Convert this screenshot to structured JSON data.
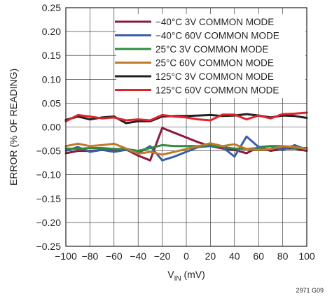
{
  "chart_data": {
    "type": "line",
    "xlabel_main": "V",
    "xlabel_sub": "IN",
    "xlabel_unit": " (mV)",
    "ylabel": "ERROR (% OF READING)",
    "figure_id": "2971 G09",
    "xlim": [
      -100,
      100
    ],
    "ylim": [
      -0.25,
      0.25
    ],
    "x_ticks": [
      -100,
      -80,
      -60,
      -40,
      -20,
      0,
      20,
      40,
      60,
      80,
      100
    ],
    "x_tick_labels": [
      "−100",
      "−80",
      "−60",
      "−40",
      "−20",
      "0",
      "20",
      "40",
      "60",
      "80",
      "100"
    ],
    "y_ticks": [
      -0.25,
      -0.2,
      -0.15,
      -0.1,
      -0.05,
      0,
      0.05,
      0.1,
      0.15,
      0.2,
      0.25
    ],
    "y_tick_labels": [
      "−0.25",
      "−0.20",
      "−0.15",
      "−0.10",
      "−0.05",
      "0.00",
      "0.05",
      "0.10",
      "0.15",
      "0.20",
      "0.25"
    ],
    "grid": true,
    "legend_position": "top-right",
    "x": [
      -100,
      -90,
      -80,
      -70,
      -60,
      -50,
      -40,
      -30,
      -20,
      -10,
      0,
      10,
      20,
      30,
      40,
      50,
      60,
      70,
      80,
      90,
      100
    ],
    "series": [
      {
        "name": "−40°C 3V COMMON MODE",
        "color": "#8b1a3a",
        "values": [
          -0.055,
          -0.05,
          -0.05,
          -0.048,
          -0.05,
          -0.047,
          -0.06,
          -0.07,
          -0.002,
          -0.012,
          -0.022,
          -0.032,
          -0.04,
          -0.045,
          -0.048,
          -0.055,
          -0.042,
          -0.05,
          -0.045,
          -0.045,
          -0.05
        ]
      },
      {
        "name": "−40°C 60V COMMON MODE",
        "color": "#3a5eab",
        "values": [
          -0.05,
          -0.042,
          -0.052,
          -0.048,
          -0.052,
          -0.048,
          -0.055,
          -0.04,
          -0.07,
          -0.062,
          -0.052,
          -0.042,
          -0.04,
          -0.042,
          -0.062,
          -0.02,
          -0.042,
          -0.04,
          -0.048,
          -0.038,
          -0.048
        ]
      },
      {
        "name": "25°C 3V COMMON MODE",
        "color": "#2e8b3e",
        "values": [
          -0.045,
          -0.046,
          -0.044,
          -0.044,
          -0.046,
          -0.046,
          -0.05,
          -0.044,
          -0.038,
          -0.04,
          -0.04,
          -0.04,
          -0.038,
          -0.042,
          -0.045,
          -0.046,
          -0.044,
          -0.04,
          -0.04,
          -0.044,
          -0.044
        ]
      },
      {
        "name": "25°C 60V COMMON MODE",
        "color": "#c07a2a",
        "values": [
          -0.04,
          -0.035,
          -0.04,
          -0.038,
          -0.035,
          -0.045,
          -0.056,
          -0.052,
          -0.058,
          -0.052,
          -0.046,
          -0.04,
          -0.034,
          -0.04,
          -0.036,
          -0.046,
          -0.048,
          -0.046,
          -0.04,
          -0.042,
          -0.046
        ]
      },
      {
        "name": "125°C 3V COMMON MODE",
        "color": "#231f20",
        "values": [
          0.015,
          0.022,
          0.016,
          0.02,
          0.022,
          0.008,
          0.012,
          0.012,
          0.022,
          0.023,
          0.023,
          0.024,
          0.025,
          0.023,
          0.024,
          0.027,
          0.024,
          0.02,
          0.024,
          0.023,
          0.019
        ]
      },
      {
        "name": "125°C 60V COMMON MODE",
        "color": "#e0232b",
        "values": [
          0.012,
          0.025,
          0.022,
          0.018,
          0.02,
          0.014,
          0.016,
          0.014,
          0.025,
          0.022,
          0.02,
          0.016,
          0.014,
          0.026,
          0.026,
          0.016,
          0.024,
          0.018,
          0.027,
          0.028,
          0.03
        ]
      }
    ]
  }
}
